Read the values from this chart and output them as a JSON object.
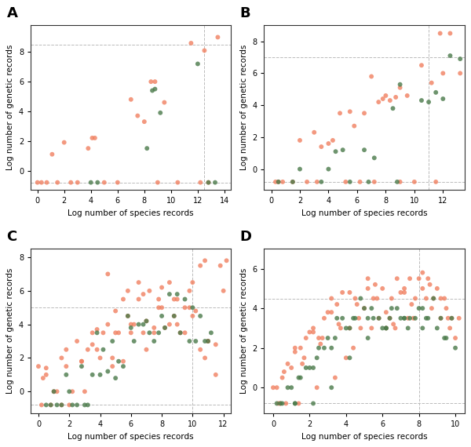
{
  "orange_color": "#F08060",
  "green_color": "#4A7A4A",
  "point_size": 18,
  "alpha": 0.8,
  "xlabel": "Log number of species records",
  "ylabel": "Log number of genetic records",
  "background_color": "#ffffff",
  "panels": {
    "A": {
      "xlim": [
        -0.5,
        14.5
      ],
      "ylim": [
        -1.3,
        9.8
      ],
      "xticks": [
        0,
        2,
        4,
        6,
        8,
        10,
        12,
        14
      ],
      "yticks": [
        0,
        2,
        4,
        6,
        8
      ],
      "hlines": [
        8.5,
        -0.8
      ],
      "vlines": [
        12.5
      ],
      "orange_x": [
        0.0,
        1.1,
        2.0,
        3.8,
        4.1,
        4.3,
        7.0,
        7.5,
        8.0,
        8.5,
        8.8,
        9.5,
        11.5,
        12.5,
        12.8,
        13.5,
        0.3,
        0.7,
        1.5,
        2.5,
        3.0,
        5.0,
        6.0,
        9.0,
        10.5,
        12.2
      ],
      "orange_y": [
        -0.8,
        1.1,
        1.9,
        1.5,
        2.2,
        2.2,
        4.8,
        3.7,
        3.3,
        6.0,
        6.0,
        4.6,
        8.6,
        8.1,
        -0.8,
        9.0,
        -0.8,
        -0.8,
        -0.8,
        -0.8,
        -0.8,
        -0.8,
        -0.8,
        -0.8,
        -0.8,
        -0.8
      ],
      "green_x": [
        4.0,
        4.5,
        8.2,
        8.6,
        8.8,
        9.2,
        12.0,
        12.8,
        13.3
      ],
      "green_y": [
        -0.8,
        -0.8,
        1.5,
        5.4,
        5.5,
        3.9,
        7.2,
        -0.8,
        -0.8
      ]
    },
    "B": {
      "xlim": [
        -0.5,
        13.5
      ],
      "ylim": [
        -1.3,
        9.0
      ],
      "xticks": [
        0,
        2,
        4,
        6,
        8,
        10,
        12
      ],
      "yticks": [
        0,
        2,
        4,
        6,
        8
      ],
      "hlines": [
        7.0,
        -0.8
      ],
      "vlines": [
        11.0
      ],
      "orange_x": [
        0.3,
        0.8,
        2.0,
        3.0,
        3.5,
        4.0,
        4.3,
        4.8,
        5.5,
        5.8,
        6.5,
        7.0,
        7.5,
        7.8,
        8.0,
        8.3,
        8.7,
        9.0,
        9.5,
        10.5,
        11.2,
        11.8,
        12.0,
        12.5,
        13.2,
        0.5,
        1.5,
        2.5,
        3.2,
        5.2,
        6.2,
        7.2,
        9.0,
        10.0,
        11.5
      ],
      "orange_y": [
        -0.8,
        -0.8,
        1.8,
        2.3,
        1.4,
        1.6,
        1.8,
        3.5,
        3.6,
        2.7,
        3.5,
        5.8,
        4.2,
        4.4,
        4.6,
        4.3,
        4.5,
        5.1,
        4.6,
        6.5,
        5.4,
        8.5,
        6.0,
        8.5,
        6.0,
        -0.8,
        -0.8,
        -0.8,
        -0.8,
        -0.8,
        -0.8,
        -0.8,
        -0.8,
        -0.8,
        -0.8
      ],
      "green_x": [
        0.5,
        2.0,
        4.0,
        4.5,
        5.0,
        6.5,
        7.2,
        8.5,
        9.0,
        10.5,
        11.0,
        11.5,
        12.0,
        12.5,
        1.5,
        3.5,
        5.5,
        6.8,
        8.8,
        13.2
      ],
      "green_y": [
        -0.8,
        0.0,
        0.0,
        1.1,
        1.2,
        1.2,
        0.7,
        3.8,
        5.3,
        4.3,
        4.2,
        4.8,
        4.4,
        7.1,
        -0.8,
        -0.8,
        -0.8,
        -0.8,
        -0.8,
        6.9
      ]
    },
    "C": {
      "xlim": [
        -0.5,
        12.5
      ],
      "ylim": [
        -1.3,
        8.5
      ],
      "xticks": [
        0,
        2,
        4,
        6,
        8,
        10,
        12
      ],
      "yticks": [
        0,
        2,
        4,
        6,
        8
      ],
      "hlines": [
        5.0,
        -0.8
      ],
      "vlines": [
        10.0
      ],
      "orange_x": [
        0.0,
        0.3,
        0.5,
        1.0,
        1.5,
        1.8,
        2.2,
        2.8,
        3.2,
        3.5,
        3.8,
        4.2,
        4.5,
        4.8,
        5.0,
        5.2,
        5.5,
        5.8,
        6.0,
        6.2,
        6.5,
        6.8,
        7.0,
        7.2,
        7.5,
        7.8,
        8.0,
        8.2,
        8.5,
        8.8,
        9.0,
        9.2,
        9.5,
        9.8,
        10.0,
        10.2,
        10.5,
        10.8,
        11.0,
        11.5,
        12.0,
        12.2,
        0.2,
        1.2,
        2.0,
        3.0,
        4.0,
        5.0,
        6.0,
        7.0,
        8.0,
        9.0,
        10.0,
        11.0,
        0.8,
        1.8,
        2.8,
        3.8,
        4.8,
        5.8,
        6.8,
        7.8,
        8.8,
        9.8,
        10.8,
        11.8,
        0.5,
        1.5,
        2.5,
        3.5,
        4.5,
        5.5,
        6.5,
        7.5,
        8.5,
        9.5,
        10.5,
        11.5
      ],
      "orange_y": [
        1.5,
        0.8,
        1.4,
        0.0,
        -0.8,
        2.5,
        0.0,
        1.8,
        2.5,
        2.8,
        3.7,
        3.5,
        7.0,
        1.5,
        4.8,
        3.5,
        1.8,
        6.0,
        3.5,
        4.0,
        6.5,
        5.8,
        4.2,
        6.0,
        3.5,
        5.5,
        6.2,
        3.8,
        6.5,
        4.5,
        5.5,
        3.5,
        5.0,
        6.0,
        6.5,
        4.8,
        7.5,
        2.0,
        3.0,
        1.0,
        6.0,
        7.8,
        -0.8,
        0.0,
        -0.8,
        0.0,
        2.0,
        3.5,
        4.0,
        2.5,
        5.0,
        4.0,
        4.5,
        3.0,
        -0.8,
        1.5,
        1.8,
        2.5,
        2.0,
        4.5,
        3.5,
        5.0,
        5.5,
        5.0,
        7.8,
        7.5,
        1.0,
        2.0,
        3.0,
        3.5,
        4.0,
        5.5,
        5.5,
        3.8,
        4.0,
        3.5,
        2.5,
        2.8
      ],
      "green_x": [
        0.5,
        1.0,
        1.5,
        2.0,
        2.5,
        3.0,
        3.5,
        4.0,
        4.5,
        5.0,
        5.5,
        6.0,
        6.5,
        7.0,
        7.5,
        8.0,
        8.5,
        9.0,
        9.5,
        10.0,
        10.5,
        11.0,
        1.2,
        2.2,
        3.2,
        4.2,
        5.2,
        6.2,
        7.2,
        8.2,
        9.2,
        10.2,
        11.2,
        0.8,
        1.8,
        2.8,
        3.8,
        4.8,
        5.8,
        6.8,
        7.8,
        8.8,
        9.8,
        10.8
      ],
      "green_y": [
        -0.8,
        0.0,
        -0.8,
        0.0,
        -0.8,
        -0.8,
        1.0,
        1.0,
        1.2,
        0.8,
        1.5,
        3.8,
        4.0,
        4.2,
        3.0,
        4.5,
        5.8,
        5.8,
        5.5,
        5.0,
        4.5,
        3.0,
        -0.8,
        -0.8,
        -0.8,
        2.5,
        1.8,
        3.0,
        3.5,
        3.8,
        3.5,
        3.0,
        3.5,
        -0.8,
        1.0,
        1.5,
        3.5,
        3.0,
        4.5,
        4.0,
        3.5,
        4.5,
        3.0,
        3.0
      ]
    },
    "D": {
      "xlim": [
        -0.5,
        10.5
      ],
      "ylim": [
        -1.3,
        7.0
      ],
      "xticks": [
        0,
        2,
        4,
        6,
        8,
        10
      ],
      "yticks": [
        0,
        2,
        4,
        6
      ],
      "hlines": [
        4.5,
        -0.8
      ],
      "vlines": [
        8.0
      ],
      "orange_x": [
        0.0,
        0.3,
        0.5,
        0.8,
        1.0,
        1.2,
        1.5,
        1.8,
        2.0,
        2.2,
        2.5,
        2.8,
        3.0,
        3.2,
        3.5,
        3.8,
        4.0,
        4.2,
        4.5,
        4.8,
        5.0,
        5.2,
        5.5,
        5.8,
        6.0,
        6.2,
        6.5,
        6.8,
        7.0,
        7.2,
        7.5,
        7.8,
        8.0,
        8.2,
        8.5,
        8.8,
        9.0,
        9.2,
        9.5,
        9.8,
        10.0,
        10.2,
        0.4,
        1.4,
        2.4,
        3.4,
        4.4,
        5.4,
        6.4,
        7.4,
        8.4,
        9.4,
        0.7,
        1.7,
        2.7,
        3.7,
        4.7,
        5.7,
        6.7,
        7.7,
        8.7,
        9.7,
        0.2,
        1.2,
        2.2,
        3.2,
        4.2,
        5.2,
        6.2,
        7.2,
        8.2,
        9.2,
        0.6,
        1.6,
        2.6,
        3.6,
        4.6,
        5.6,
        6.6,
        7.6,
        8.6,
        9.6
      ],
      "orange_y": [
        0.0,
        -0.8,
        0.5,
        1.2,
        1.0,
        2.0,
        2.0,
        2.5,
        2.8,
        3.0,
        2.5,
        3.5,
        3.8,
        4.5,
        4.2,
        4.8,
        1.5,
        3.0,
        4.5,
        3.0,
        4.0,
        5.0,
        4.5,
        3.5,
        5.0,
        3.0,
        4.5,
        5.5,
        4.8,
        5.0,
        5.5,
        4.5,
        5.5,
        5.0,
        5.5,
        4.5,
        5.0,
        3.5,
        4.0,
        3.5,
        2.5,
        3.5,
        -0.8,
        -0.8,
        0.0,
        0.5,
        2.0,
        3.0,
        3.5,
        3.5,
        4.5,
        4.5,
        -0.8,
        1.5,
        2.5,
        3.0,
        3.5,
        4.5,
        3.0,
        3.5,
        4.0,
        3.0,
        0.0,
        1.8,
        2.8,
        3.8,
        4.8,
        5.5,
        3.8,
        4.8,
        5.8,
        4.5,
        0.8,
        1.2,
        2.2,
        3.2,
        4.2,
        5.2,
        3.2,
        4.2,
        5.2,
        3.5
      ],
      "green_x": [
        0.5,
        1.0,
        1.5,
        2.0,
        2.5,
        3.0,
        3.5,
        4.0,
        4.5,
        5.0,
        5.5,
        6.0,
        6.5,
        7.0,
        7.5,
        8.0,
        8.5,
        9.0,
        9.5,
        10.0,
        1.2,
        2.2,
        3.2,
        4.2,
        5.2,
        6.2,
        7.2,
        8.2,
        9.2,
        0.8,
        1.8,
        2.8,
        3.8,
        4.8,
        5.8,
        6.8,
        7.8,
        8.8,
        9.8,
        0.4,
        1.4,
        2.4,
        3.4,
        4.4,
        5.4,
        6.4,
        7.4,
        8.4,
        9.4,
        0.2,
        1.2,
        2.2,
        3.2,
        4.2,
        5.2,
        6.2,
        7.2,
        8.2
      ],
      "green_y": [
        -0.8,
        0.0,
        0.5,
        1.0,
        2.0,
        2.5,
        3.5,
        3.0,
        3.5,
        4.0,
        3.5,
        3.0,
        4.0,
        3.5,
        3.5,
        4.0,
        3.5,
        3.0,
        2.5,
        2.0,
        -0.8,
        -0.8,
        0.0,
        1.5,
        2.5,
        3.0,
        3.5,
        4.0,
        3.5,
        0.0,
        1.0,
        2.0,
        3.5,
        4.5,
        3.5,
        4.0,
        3.5,
        4.5,
        3.5,
        -0.8,
        0.5,
        1.5,
        2.5,
        3.5,
        4.0,
        3.5,
        3.0,
        3.5,
        2.5,
        -0.8,
        -0.8,
        1.0,
        2.0,
        3.0,
        3.5,
        3.0,
        3.5,
        3.0
      ]
    }
  }
}
